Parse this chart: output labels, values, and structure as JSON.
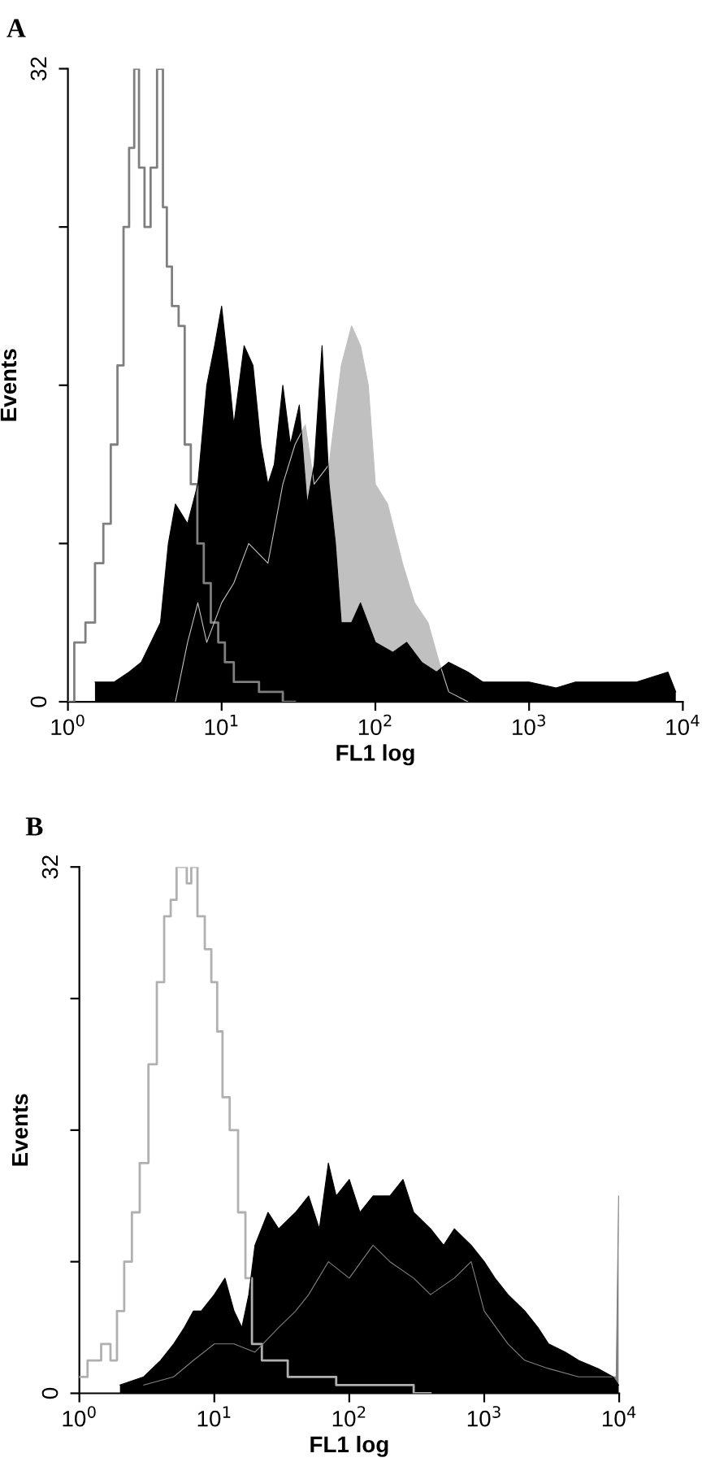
{
  "chart_data": [
    {
      "type": "area",
      "title": "A",
      "xlabel": "FL1 log",
      "ylabel": "Events",
      "log": "x",
      "grid": false,
      "legend": false,
      "xlim": [
        1,
        10000
      ],
      "xticks": [
        {
          "value": 1,
          "label": "10$^{0}$"
        },
        {
          "value": 10,
          "label": "10$^{1}$"
        },
        {
          "value": 100,
          "label": "10$^{2}$"
        },
        {
          "value": 1000,
          "label": "10$^{3}$"
        },
        {
          "value": 10000,
          "label": "10$^{4}$"
        }
      ],
      "ylim": [
        0,
        32
      ],
      "yticks": [
        0,
        {
          "value": 8,
          "label": null
        },
        {
          "value": 16,
          "label": null
        },
        {
          "value": 24,
          "label": null
        },
        32
      ],
      "series": [
        {
          "type": "step",
          "color": "#7f7f7f",
          "x": [
            1.0,
            1.2,
            1.4,
            1.6,
            1.8,
            2.0,
            2.2,
            2.4,
            2.6,
            2.8,
            3.0,
            3.3,
            3.6,
            4.0,
            4.3,
            4.5,
            5.0,
            5.5,
            6.0,
            6.6,
            7.3,
            8,
            9,
            10,
            11,
            13,
            15,
            20,
            30
          ],
          "values": [
            0,
            3,
            4,
            7,
            9,
            13,
            17,
            24,
            28,
            32,
            27,
            24,
            27,
            32,
            25,
            22,
            20,
            19,
            13,
            11,
            8,
            6,
            4,
            3,
            2,
            1,
            1,
            0.5,
            0
          ]
        },
        {
          "color": "#c0c0c0",
          "x": [
            5,
            6,
            7,
            8,
            10,
            12,
            15,
            20,
            25,
            30,
            35,
            40,
            50,
            60,
            70,
            80,
            90,
            100,
            120,
            150,
            180,
            220,
            260,
            300,
            400
          ],
          "values": [
            0,
            3,
            5,
            3,
            5,
            6,
            8,
            7,
            11,
            13,
            14,
            11,
            12,
            17,
            19,
            18,
            16,
            11,
            10,
            7,
            5,
            4,
            2,
            0.5,
            0
          ]
        },
        {
          "color": "#000000",
          "x": [
            1.5,
            2,
            2.5,
            3,
            4,
            4.5,
            5,
            6,
            7,
            8,
            9,
            10,
            11,
            12,
            14,
            16,
            18,
            20,
            22,
            25,
            28,
            32,
            36,
            40,
            45,
            50,
            55,
            60,
            70,
            80,
            100,
            130,
            160,
            200,
            250,
            300,
            400,
            500,
            700,
            1000,
            1500,
            2000,
            3000,
            5000,
            8000,
            9000
          ],
          "values": [
            1,
            1,
            1.5,
            2,
            4,
            8,
            10,
            9,
            11,
            16,
            18,
            20,
            17,
            14,
            18,
            17,
            13,
            11,
            12,
            16,
            13,
            15,
            10,
            12,
            18,
            11,
            8,
            4,
            4,
            5,
            3,
            2.5,
            3,
            2,
            1.5,
            2,
            1.5,
            1,
            1,
            1,
            0.7,
            1,
            1,
            1,
            1.5,
            0.5
          ]
        }
      ]
    },
    {
      "type": "area",
      "title": "B",
      "xlabel": "FL1 log",
      "ylabel": "Events",
      "log": "x",
      "grid": false,
      "legend": false,
      "xlim": [
        1,
        10000
      ],
      "xticks": [
        {
          "value": 1,
          "label": "10$^{0}$"
        },
        {
          "value": 10,
          "label": "10$^{1}$"
        },
        {
          "value": 100,
          "label": "10$^{2}$"
        },
        {
          "value": 1000,
          "label": "10$^{3}$"
        },
        {
          "value": 10000,
          "label": "10$^{4}$"
        }
      ],
      "ylim": [
        0,
        32
      ],
      "yticks": [
        0,
        {
          "value": 8,
          "label": null
        },
        {
          "value": 16,
          "label": null
        },
        {
          "value": 24,
          "label": null
        },
        32
      ],
      "series": [
        {
          "type": "step",
          "color": "#b0b0b0",
          "x": [
            1.0,
            1.3,
            1.6,
            1.8,
            2,
            2.3,
            2.6,
            3,
            3.5,
            4,
            4.5,
            5,
            5.5,
            6,
            6.5,
            7,
            8,
            9,
            10,
            11,
            12,
            14,
            16,
            18,
            20,
            25,
            30,
            40,
            60,
            100,
            200,
            400
          ],
          "values": [
            1,
            2,
            3,
            2,
            5,
            8,
            11,
            14,
            20,
            25,
            29,
            30,
            32,
            32,
            31,
            32,
            29,
            27,
            25,
            22,
            18,
            16,
            11,
            7,
            3,
            2,
            2,
            1,
            1,
            0.5,
            0.5,
            0
          ]
        },
        {
          "color": "#808080",
          "x": [
            3,
            5,
            7,
            10,
            14,
            20,
            30,
            40,
            50,
            70,
            100,
            150,
            200,
            300,
            400,
            600,
            800,
            1000,
            1500,
            2000,
            3000,
            5000,
            9500,
            9900
          ],
          "values": [
            0.5,
            1,
            2,
            3,
            3,
            2.5,
            4,
            5,
            6,
            8,
            7,
            9,
            8,
            7,
            6,
            7,
            8,
            5,
            3,
            2,
            1.5,
            1,
            1,
            12
          ]
        },
        {
          "color": "#000000",
          "x": [
            2,
            3,
            4,
            5,
            6,
            7,
            8,
            10,
            12,
            14,
            16,
            18,
            20,
            25,
            30,
            40,
            50,
            60,
            70,
            80,
            100,
            120,
            150,
            200,
            250,
            300,
            400,
            500,
            600,
            800,
            1000,
            1200,
            1500,
            2000,
            2500,
            3000,
            4000,
            5000,
            7000,
            9000,
            9900
          ],
          "values": [
            0.5,
            1,
            2,
            3,
            4,
            5,
            5,
            6,
            7,
            5,
            4,
            6,
            9,
            11,
            10,
            11,
            12,
            10,
            14,
            12,
            13,
            11,
            12,
            12,
            13,
            11,
            10,
            9,
            10,
            9,
            8,
            7,
            6,
            5,
            4,
            3,
            2.5,
            2,
            1.5,
            1,
            0.5
          ]
        }
      ]
    }
  ]
}
